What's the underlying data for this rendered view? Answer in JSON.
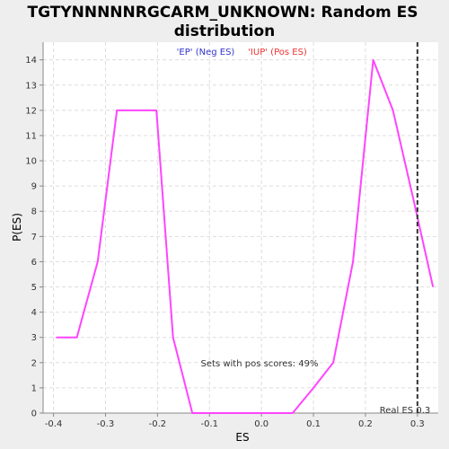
{
  "chart_data": {
    "type": "line",
    "title_line1": "TGTYNNNNNRGCARM_UNKNOWN: Random ES",
    "title_line2": "distribution",
    "xlabel": "ES",
    "ylabel": "P(ES)",
    "xlim": [
      -0.42,
      0.34
    ],
    "ylim": [
      0,
      14.7
    ],
    "xticks": [
      -0.4,
      -0.3,
      -0.2,
      -0.1,
      0.0,
      0.1,
      0.2,
      0.3
    ],
    "xtick_labels": [
      "-0.4",
      "-0.3",
      "-0.2",
      "-0.1",
      "0.0",
      "0.1",
      "0.2",
      "0.3"
    ],
    "yticks": [
      0,
      1,
      2,
      3,
      4,
      5,
      6,
      7,
      8,
      9,
      10,
      11,
      12,
      13,
      14
    ],
    "ytick_labels": [
      "0",
      "1",
      "2",
      "3",
      "4",
      "5",
      "6",
      "7",
      "8",
      "9",
      "10",
      "11",
      "12",
      "13",
      "14"
    ],
    "legend": [
      {
        "label": "'EP' (Neg ES)",
        "color": "#3333cc"
      },
      {
        "label": "'IUP' (Pos ES)",
        "color": "#ee3333"
      }
    ],
    "series": [
      {
        "color": "#ff44ff",
        "x": [
          -0.395,
          -0.355,
          -0.315,
          -0.278,
          -0.24,
          -0.202,
          -0.17,
          -0.133,
          -0.095,
          -0.057,
          -0.02,
          0.02,
          0.06,
          0.1,
          0.138,
          0.176,
          0.215,
          0.253,
          0.292,
          0.33
        ],
        "y": [
          3,
          3,
          6,
          12,
          12,
          12,
          3,
          0,
          0,
          0,
          0,
          0,
          0,
          1,
          2,
          6,
          14,
          12,
          8.5,
          5
        ]
      }
    ],
    "real_es": {
      "value": 0.3,
      "label": "Real ES 0.3"
    },
    "annotation": "Sets with pos scores: 49%",
    "grid": true
  }
}
